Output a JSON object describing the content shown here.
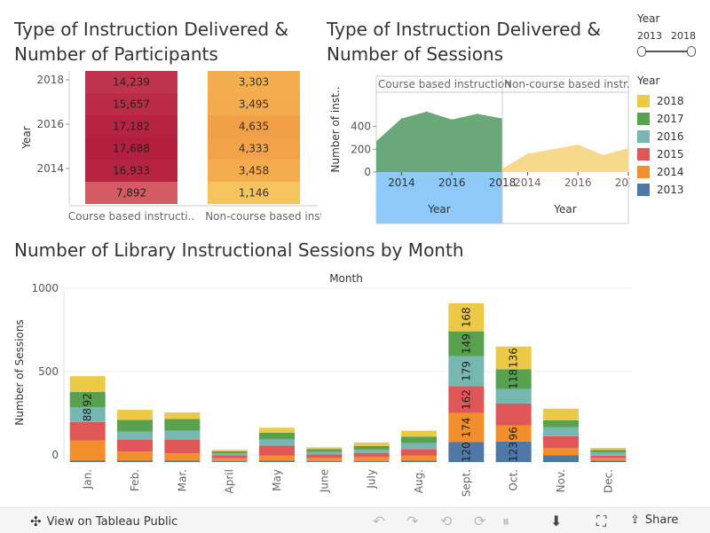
{
  "titles": {
    "participants": "Type of Instruction Delivered &\nNumber of Participants",
    "sessions": "Type of Instruction Delivered &\nNumber of Sessions",
    "monthly": "Number of Library Instructional Sessions by Month"
  },
  "year_filter": {
    "label": "Year",
    "min": "2013",
    "max": "2018"
  },
  "legend": {
    "title": "Year",
    "items": [
      {
        "label": "2018",
        "color": "#edc948"
      },
      {
        "label": "2017",
        "color": "#59a14f"
      },
      {
        "label": "2016",
        "color": "#76b7b2"
      },
      {
        "label": "2015",
        "color": "#e15759"
      },
      {
        "label": "2014",
        "color": "#f28e2b"
      },
      {
        "label": "2013",
        "color": "#4e79a7"
      }
    ]
  },
  "footer": {
    "view_label": "View on Tableau Public",
    "share_label": "Share",
    "icons": [
      "tableau-logo-icon",
      "undo-icon",
      "redo-icon",
      "revert-icon",
      "refresh-icon",
      "pause-icon",
      "download-icon",
      "fullscreen-icon",
      "share-icon"
    ]
  },
  "chart_data": [
    {
      "type": "heatmap",
      "id": "participants",
      "columns": [
        "Course based instructi..",
        "Non-course based instr.."
      ],
      "ylabel": "Year",
      "y_ticks": [
        "2018",
        "2016",
        "2014"
      ],
      "rows": [
        {
          "year": "2018",
          "values": [
            "14,239",
            "3,303"
          ]
        },
        {
          "year": "2017",
          "values": [
            "15,657",
            "3,495"
          ]
        },
        {
          "year": "2016",
          "values": [
            "17,182",
            "4,635"
          ]
        },
        {
          "year": "2015",
          "values": [
            "17,688",
            "4,333"
          ]
        },
        {
          "year": "2014",
          "values": [
            "16,933",
            "3,458"
          ]
        },
        {
          "year": "2013",
          "values": [
            "7,892",
            "1,146"
          ]
        }
      ],
      "color_scales": {
        "course": [
          "#d45a63",
          "#b41f3f"
        ],
        "noncourse": [
          "#f7c35c",
          "#f2a047"
        ]
      }
    },
    {
      "type": "area",
      "id": "sessions",
      "panels": [
        {
          "label": "Course based instruction",
          "color": "#6aa779"
        },
        {
          "label": "Non-course based instr...",
          "color": "#f6d98c"
        }
      ],
      "x": [
        2013,
        2014,
        2015,
        2016,
        2017,
        2018
      ],
      "series": [
        {
          "values": [
            270,
            470,
            530,
            460,
            510,
            470
          ]
        },
        {
          "values": [
            30,
            160,
            200,
            240,
            150,
            210
          ]
        }
      ],
      "y_ticks": [
        0,
        200,
        400
      ],
      "ylim": [
        0,
        700
      ],
      "x_ticks": [
        "2014",
        "2016",
        "2018"
      ],
      "ylabel": "Number of inst..",
      "xlabel": "Year"
    },
    {
      "type": "bar",
      "id": "monthly",
      "stacked": true,
      "top_label": "Month",
      "ylabel": "Number of Sessions",
      "y_ticks": [
        0,
        500,
        1000
      ],
      "ylim": [
        0,
        1050
      ],
      "categories": [
        "Jan.",
        "Feb.",
        "Mar.",
        "April",
        "May",
        "June",
        "July",
        "Aug.",
        "Sept.",
        "Oct.",
        "Nov.",
        "Dec."
      ],
      "series": [
        {
          "name": "2013",
          "values": [
            10,
            8,
            8,
            5,
            8,
            5,
            5,
            8,
            120,
            123,
            40,
            8
          ],
          "labels": [
            "",
            "",
            "",
            "",
            "",
            "",
            "",
            "",
            "120",
            "123",
            "",
            ""
          ]
        },
        {
          "name": "2014",
          "values": [
            120,
            55,
            45,
            18,
            30,
            20,
            25,
            30,
            174,
            96,
            45,
            15
          ],
          "labels": [
            "",
            "",
            "",
            "",
            "",
            "",
            "",
            "",
            "174",
            "96",
            "",
            ""
          ]
        },
        {
          "name": "2015",
          "values": [
            110,
            70,
            80,
            18,
            60,
            20,
            25,
            40,
            162,
            133,
            70,
            15
          ],
          "labels": [
            "",
            "",
            "",
            "",
            "",
            "",
            "",
            "",
            "162",
            "",
            "",
            ""
          ]
        },
        {
          "name": "2016",
          "values": [
            88,
            50,
            55,
            12,
            38,
            15,
            20,
            35,
            179,
            87,
            55,
            20
          ],
          "labels": [
            "88",
            "",
            "",
            "",
            "",
            "",
            "",
            "",
            "179",
            "",
            "",
            ""
          ]
        },
        {
          "name": "2017",
          "values": [
            92,
            70,
            70,
            12,
            40,
            18,
            22,
            40,
            149,
            118,
            40,
            15
          ],
          "labels": [
            "92",
            "",
            "",
            "",
            "",
            "",
            "",
            "",
            "149",
            "118",
            "",
            ""
          ]
        },
        {
          "name": "2018",
          "values": [
            95,
            60,
            40,
            8,
            30,
            10,
            20,
            35,
            168,
            136,
            70,
            12
          ],
          "labels": [
            "",
            "",
            "",
            "",
            "",
            "",
            "",
            "",
            "168",
            "136",
            "",
            ""
          ]
        }
      ]
    }
  ]
}
